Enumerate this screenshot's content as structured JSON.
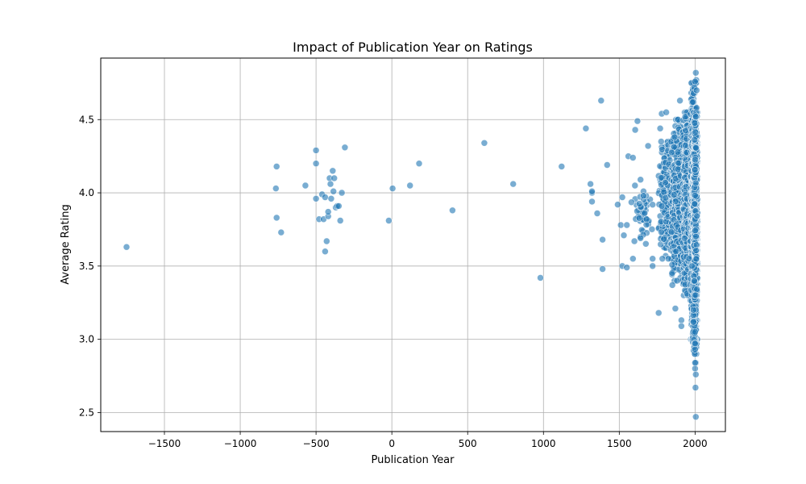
{
  "chart_data": {
    "type": "scatter",
    "title": "Impact of Publication Year on Ratings",
    "xlabel": "Publication Year",
    "ylabel": "Average Rating",
    "xlim": [
      -1920,
      2200
    ],
    "ylim": [
      2.37,
      4.92
    ],
    "xticks": [
      -1500,
      -1000,
      -500,
      0,
      500,
      1000,
      1500,
      2000
    ],
    "xtick_labels": [
      "−1500",
      "−1000",
      "−500",
      "0",
      "500",
      "1000",
      "1500",
      "2000"
    ],
    "yticks": [
      2.5,
      3.0,
      3.5,
      4.0,
      4.5
    ],
    "ytick_labels": [
      "2.5",
      "3.0",
      "3.5",
      "4.0",
      "4.5"
    ],
    "grid": true,
    "marker_color": "#1f77b4",
    "marker_alpha": 0.6,
    "points": [
      [
        -1750,
        3.63
      ],
      [
        -760,
        4.18
      ],
      [
        -765,
        4.03
      ],
      [
        -760,
        3.83
      ],
      [
        -730,
        3.73
      ],
      [
        -570,
        4.05
      ],
      [
        -500,
        4.29
      ],
      [
        -500,
        4.2
      ],
      [
        -500,
        3.96
      ],
      [
        -480,
        3.82
      ],
      [
        -460,
        3.99
      ],
      [
        -450,
        3.82
      ],
      [
        -440,
        3.97
      ],
      [
        -440,
        3.6
      ],
      [
        -430,
        3.67
      ],
      [
        -420,
        3.84
      ],
      [
        -420,
        3.87
      ],
      [
        -410,
        4.1
      ],
      [
        -405,
        4.06
      ],
      [
        -400,
        3.96
      ],
      [
        -390,
        4.15
      ],
      [
        -385,
        4.01
      ],
      [
        -380,
        4.1
      ],
      [
        -370,
        3.9
      ],
      [
        -360,
        3.91
      ],
      [
        -350,
        3.91
      ],
      [
        -340,
        3.81
      ],
      [
        -330,
        4.0
      ],
      [
        -310,
        4.31
      ],
      [
        -20,
        3.81
      ],
      [
        5,
        4.03
      ],
      [
        120,
        4.05
      ],
      [
        180,
        4.2
      ],
      [
        400,
        3.88
      ],
      [
        610,
        4.34
      ],
      [
        800,
        4.06
      ],
      [
        980,
        3.42
      ],
      [
        1120,
        4.18
      ],
      [
        1280,
        4.44
      ],
      [
        1310,
        4.06
      ],
      [
        1320,
        4.0
      ],
      [
        1320,
        3.94
      ],
      [
        1320,
        4.01
      ],
      [
        1355,
        3.86
      ],
      [
        1380,
        4.63
      ],
      [
        1390,
        3.68
      ],
      [
        1390,
        3.48
      ],
      [
        1420,
        4.19
      ],
      [
        1490,
        3.92
      ],
      [
        1510,
        3.78
      ],
      [
        1520,
        3.97
      ],
      [
        1520,
        3.5
      ],
      [
        1530,
        3.71
      ],
      [
        1550,
        3.78
      ],
      [
        1550,
        3.49
      ],
      [
        1560,
        4.25
      ],
      [
        1590,
        3.55
      ],
      [
        1590,
        4.24
      ],
      [
        1600,
        3.67
      ],
      [
        1605,
        4.43
      ],
      [
        1620,
        4.49
      ],
      [
        1640,
        4.09
      ],
      [
        1640,
        3.69
      ],
      [
        1660,
        4.01
      ],
      [
        1660,
        3.98
      ],
      [
        1680,
        3.82
      ],
      [
        1690,
        4.32
      ],
      [
        1720,
        3.55
      ],
      [
        1720,
        3.5
      ],
      [
        1760,
        3.18
      ],
      [
        1770,
        4.44
      ],
      [
        1780,
        4.54
      ],
      [
        1810,
        4.55
      ],
      [
        1850,
        3.37
      ],
      [
        1870,
        3.21
      ],
      [
        1900,
        4.63
      ],
      [
        1910,
        3.13
      ],
      [
        1910,
        3.09
      ],
      [
        1960,
        3.55
      ],
      [
        1980,
        3.5
      ],
      [
        1990,
        3.2
      ],
      [
        2000,
        3.05
      ],
      [
        2000,
        2.97
      ],
      [
        2000,
        2.93
      ],
      [
        2005,
        2.84
      ],
      [
        2000,
        2.84
      ],
      [
        2000,
        2.8
      ],
      [
        2005,
        2.76
      ],
      [
        2003,
        2.67
      ],
      [
        2005,
        2.47
      ],
      [
        2005,
        4.82
      ],
      [
        2008,
        4.77
      ],
      [
        2000,
        4.76
      ],
      [
        1995,
        4.72
      ],
      [
        1990,
        4.68
      ],
      [
        2010,
        4.7
      ],
      [
        1985,
        4.62
      ],
      [
        2010,
        4.58
      ]
    ],
    "dense_clusters": [
      {
        "x_range": [
          1580,
          1720
        ],
        "y_range": [
          3.65,
          4.05
        ],
        "n": 45
      },
      {
        "x_range": [
          1760,
          1860
        ],
        "y_range": [
          3.55,
          4.35
        ],
        "n": 180
      },
      {
        "x_range": [
          1840,
          1930
        ],
        "y_range": [
          3.4,
          4.5
        ],
        "n": 520
      },
      {
        "x_range": [
          1920,
          1975
        ],
        "y_range": [
          3.3,
          4.55
        ],
        "n": 650
      },
      {
        "x_range": [
          1970,
          2015
        ],
        "y_range": [
          3.0,
          4.75
        ],
        "n": 1100
      },
      {
        "x_range": [
          1990,
          2015
        ],
        "y_range": [
          3.3,
          4.55
        ],
        "n": 900
      },
      {
        "x_range": [
          1985,
          2012
        ],
        "y_range": [
          2.9,
          3.5
        ],
        "n": 80
      }
    ]
  }
}
